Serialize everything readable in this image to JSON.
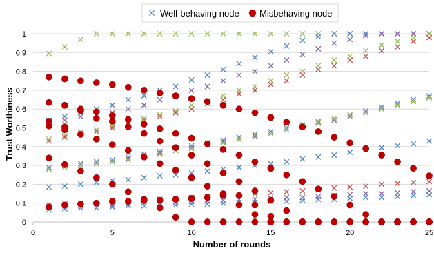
{
  "chart_data": {
    "type": "scatter",
    "xlabel": "Number of rounds",
    "ylabel": "Trust Worthiness",
    "xlim": [
      0,
      25
    ],
    "ylim": [
      0,
      1
    ],
    "x_ticks": [
      "0",
      "5",
      "10",
      "15",
      "20",
      "25"
    ],
    "y_ticks": [
      "0",
      "0,1",
      "0,2",
      "0,3",
      "0,4",
      "0,5",
      "0,6",
      "0,7",
      "0,8",
      "0,9",
      "1"
    ],
    "legend": {
      "position": "top",
      "entries": [
        {
          "label": "Well-behaving node",
          "marker": "x"
        },
        {
          "label": "Misbehaving node",
          "marker": "circle"
        }
      ]
    },
    "marker_colors": {
      "blue": "#4f81bd",
      "green": "#9bbb59",
      "purple": "#8064a2",
      "red": "#c0504d",
      "misbehaving": "#c00000"
    },
    "well_behaving": [
      {
        "color": "green",
        "x": [
          1,
          2,
          3,
          4,
          5,
          6,
          7,
          8,
          9,
          10,
          11,
          12,
          13,
          14,
          15,
          16,
          17,
          18,
          19,
          20,
          21,
          22,
          23,
          24,
          25
        ],
        "y": [
          0.895,
          0.93,
          0.97,
          1,
          1,
          1,
          1,
          1,
          1,
          1,
          1,
          1,
          1,
          1,
          1,
          1,
          1,
          1,
          1,
          1,
          1,
          1,
          1,
          1,
          1
        ]
      },
      {
        "color": "blue",
        "x": [
          1,
          2,
          3,
          4,
          5,
          6,
          7,
          8,
          9,
          10,
          11,
          12,
          13,
          14,
          15,
          16,
          17,
          18,
          19,
          20,
          21,
          22,
          23,
          24,
          25
        ],
        "y": [
          0.54,
          0.56,
          0.58,
          0.6,
          0.62,
          0.65,
          0.67,
          0.7,
          0.72,
          0.755,
          0.78,
          0.81,
          0.84,
          0.875,
          0.905,
          0.935,
          0.965,
          0.985,
          1,
          1,
          1,
          1,
          1,
          1,
          1
        ]
      },
      {
        "color": "purple",
        "x": [
          1,
          2,
          3,
          4,
          5,
          6,
          7,
          8,
          9,
          10,
          11,
          12,
          13,
          14,
          15,
          16,
          17,
          18,
          19,
          20,
          21,
          22,
          23,
          24,
          25
        ],
        "y": [
          0.52,
          0.54,
          0.56,
          0.57,
          0.58,
          0.6,
          0.62,
          0.65,
          0.67,
          0.7,
          0.72,
          0.75,
          0.78,
          0.8,
          0.83,
          0.86,
          0.89,
          0.92,
          0.95,
          0.97,
          0.99,
          1,
          1,
          1,
          1
        ]
      },
      {
        "color": "green",
        "x": [
          1,
          2,
          3,
          4,
          5,
          6,
          7,
          8,
          9,
          10,
          11,
          12,
          13,
          14,
          15,
          16,
          17,
          18,
          19,
          20,
          21,
          22,
          23,
          24,
          25
        ],
        "y": [
          0.44,
          0.46,
          0.48,
          0.49,
          0.51,
          0.53,
          0.55,
          0.57,
          0.59,
          0.62,
          0.64,
          0.67,
          0.7,
          0.72,
          0.75,
          0.78,
          0.8,
          0.83,
          0.86,
          0.88,
          0.91,
          0.94,
          0.96,
          0.98,
          1
        ]
      },
      {
        "color": "red",
        "x": [
          1,
          2,
          3,
          4,
          5,
          6,
          7,
          8,
          9,
          10,
          11,
          12,
          13,
          14,
          15,
          16,
          17,
          18,
          19,
          20,
          21,
          22,
          23,
          24,
          25
        ],
        "y": [
          0.43,
          0.45,
          0.47,
          0.48,
          0.5,
          0.52,
          0.54,
          0.56,
          0.58,
          0.6,
          0.63,
          0.65,
          0.68,
          0.7,
          0.73,
          0.75,
          0.78,
          0.81,
          0.83,
          0.86,
          0.88,
          0.91,
          0.93,
          0.96,
          0.98
        ]
      },
      {
        "color": "blue",
        "x": [
          1,
          2,
          3,
          4,
          5,
          6,
          7,
          8,
          9,
          10,
          11,
          12,
          13,
          14,
          15,
          16,
          17,
          18,
          19,
          20,
          21,
          22,
          23,
          24,
          25
        ],
        "y": [
          0.29,
          0.3,
          0.31,
          0.32,
          0.33,
          0.345,
          0.36,
          0.375,
          0.395,
          0.405,
          0.42,
          0.435,
          0.45,
          0.465,
          0.48,
          0.5,
          0.515,
          0.535,
          0.55,
          0.57,
          0.59,
          0.61,
          0.63,
          0.65,
          0.67
        ]
      },
      {
        "color": "purple",
        "x": [
          1,
          2,
          3,
          4,
          5,
          6,
          7,
          8,
          9,
          10,
          11,
          12,
          13,
          14,
          15,
          16,
          17,
          18,
          19,
          20,
          21,
          22,
          23,
          24,
          25
        ],
        "y": [
          0.28,
          0.29,
          0.3,
          0.31,
          0.32,
          0.335,
          0.35,
          0.365,
          0.38,
          0.395,
          0.41,
          0.425,
          0.44,
          0.455,
          0.47,
          0.49,
          0.51,
          0.525,
          0.54,
          0.56,
          0.58,
          0.6,
          0.62,
          0.64,
          0.66
        ]
      },
      {
        "color": "green",
        "x": [
          1,
          2,
          3,
          4,
          5,
          6,
          7,
          8,
          9,
          10,
          11,
          12,
          13,
          14,
          15,
          16,
          17,
          18,
          19,
          20,
          21,
          22,
          23,
          24,
          25
        ],
        "y": [
          0.28,
          0.29,
          0.3,
          0.31,
          0.32,
          0.33,
          0.35,
          0.36,
          0.38,
          0.39,
          0.41,
          0.42,
          0.44,
          0.46,
          0.47,
          0.49,
          0.51,
          0.53,
          0.55,
          0.57,
          0.58,
          0.6,
          0.62,
          0.64,
          0.66
        ]
      },
      {
        "color": "blue",
        "x": [
          1,
          2,
          3,
          4,
          5,
          6,
          7,
          8,
          9,
          10,
          11,
          12,
          13,
          14,
          15,
          16,
          17,
          18,
          19,
          20,
          21,
          22,
          23,
          24,
          25
        ],
        "y": [
          0.185,
          0.19,
          0.2,
          0.21,
          0.22,
          0.225,
          0.235,
          0.245,
          0.25,
          0.26,
          0.27,
          0.28,
          0.29,
          0.3,
          0.31,
          0.32,
          0.335,
          0.345,
          0.355,
          0.37,
          0.385,
          0.395,
          0.405,
          0.415,
          0.43
        ]
      },
      {
        "color": "red",
        "x": [
          1,
          2,
          3,
          4,
          5,
          6,
          7,
          8,
          9,
          10,
          11,
          12,
          13,
          14,
          15,
          16,
          17,
          18,
          19,
          20,
          21,
          22,
          23,
          24,
          25
        ],
        "y": [
          0.09,
          0.095,
          0.1,
          0.1,
          0.105,
          0.11,
          0.115,
          0.12,
          0.125,
          0.13,
          0.135,
          0.14,
          0.145,
          0.15,
          0.155,
          0.16,
          0.165,
          0.17,
          0.18,
          0.185,
          0.19,
          0.2,
          0.205,
          0.21,
          0.215
        ]
      },
      {
        "color": "purple",
        "x": [
          1,
          2,
          3,
          4,
          5,
          6,
          7,
          8,
          9,
          10,
          11,
          12,
          13,
          14,
          15,
          16,
          17,
          18,
          19,
          20,
          21,
          22,
          23,
          24,
          25
        ],
        "y": [
          0.08,
          0.085,
          0.085,
          0.09,
          0.09,
          0.095,
          0.1,
          0.1,
          0.105,
          0.11,
          0.11,
          0.115,
          0.12,
          0.12,
          0.125,
          0.13,
          0.13,
          0.135,
          0.14,
          0.145,
          0.15,
          0.15,
          0.155,
          0.16,
          0.165
        ]
      },
      {
        "color": "blue",
        "x": [
          1,
          2,
          3,
          4,
          5,
          6,
          7,
          8,
          9,
          10,
          11,
          12,
          13,
          14,
          15,
          16,
          17,
          18,
          19,
          20,
          21,
          22,
          23,
          24,
          25
        ],
        "y": [
          0.065,
          0.07,
          0.075,
          0.075,
          0.08,
          0.085,
          0.085,
          0.09,
          0.09,
          0.095,
          0.095,
          0.1,
          0.105,
          0.105,
          0.11,
          0.11,
          0.115,
          0.12,
          0.12,
          0.125,
          0.13,
          0.13,
          0.135,
          0.14,
          0.145
        ]
      }
    ],
    "misbehaving": [
      {
        "x": [
          1,
          2,
          3,
          4,
          5,
          6,
          7,
          8,
          9,
          10,
          11,
          12,
          13,
          14,
          15,
          16,
          17,
          18,
          19,
          20,
          21,
          22,
          23,
          24,
          25
        ],
        "y": [
          0.77,
          0.76,
          0.75,
          0.74,
          0.73,
          0.715,
          0.7,
          0.685,
          0.67,
          0.655,
          0.64,
          0.62,
          0.6,
          0.58,
          0.555,
          0.53,
          0.505,
          0.48,
          0.45,
          0.42,
          0.39,
          0.355,
          0.32,
          0.285,
          0.245
        ]
      },
      {
        "x": [
          1,
          2,
          3,
          4,
          5,
          6,
          7,
          8,
          9,
          10,
          11,
          12,
          13,
          14,
          15,
          16,
          17,
          18,
          19,
          20,
          21,
          22,
          23,
          24,
          25
        ],
        "y": [
          0.635,
          0.62,
          0.6,
          0.585,
          0.565,
          0.545,
          0.52,
          0.495,
          0.47,
          0.445,
          0.415,
          0.385,
          0.355,
          0.32,
          0.285,
          0.25,
          0.215,
          0.175,
          0.135,
          0.09,
          0.04,
          0,
          0,
          0,
          0
        ]
      },
      {
        "x": [
          1,
          2,
          3,
          4,
          5,
          6,
          7,
          8,
          9,
          10,
          11,
          12,
          13,
          14,
          15,
          16,
          17,
          18,
          19,
          20,
          21,
          22,
          23,
          24,
          25
        ],
        "y": [
          0.51,
          0.49,
          0.465,
          0.44,
          0.41,
          0.38,
          0.345,
          0.31,
          0.275,
          0.235,
          0.19,
          0.14,
          0.09,
          0.04,
          0,
          0,
          0,
          0,
          0,
          0,
          0,
          0,
          0,
          0,
          0
        ]
      },
      {
        "x": [
          1,
          2,
          3,
          4,
          5,
          6,
          7,
          8,
          9,
          10,
          11,
          12,
          13,
          14,
          15,
          16,
          17,
          18,
          19,
          20,
          21,
          22,
          23,
          24,
          25
        ],
        "y": [
          0.34,
          0.305,
          0.27,
          0.235,
          0.2,
          0.16,
          0.12,
          0.075,
          0.025,
          0,
          0,
          0,
          0,
          0,
          0,
          0,
          0,
          0,
          0,
          0,
          0,
          0,
          0,
          0,
          0
        ]
      },
      {
        "x": [
          1,
          2,
          3,
          4,
          5,
          6,
          7,
          8,
          9,
          10,
          11,
          12,
          13,
          14,
          15,
          16,
          17,
          18,
          19,
          20,
          21,
          22,
          23,
          24,
          25
        ],
        "y": [
          0.535,
          0.505,
          0.59,
          0.55,
          0.535,
          0.505,
          0.47,
          0.43,
          0.395,
          0.355,
          0.31,
          0.26,
          0.215,
          0.165,
          0.115,
          0.06,
          0,
          0,
          0,
          0,
          0,
          0,
          0,
          0,
          0
        ]
      },
      {
        "x": [
          1,
          2,
          3,
          4,
          5,
          6,
          7,
          8,
          9,
          10,
          11,
          12,
          13,
          14,
          15,
          16,
          17,
          18,
          19,
          20,
          21,
          22,
          23,
          24,
          25
        ],
        "y": [
          0.08,
          0.09,
          0.095,
          0.1,
          0.11,
          0.11,
          0.115,
          0.115,
          0.12,
          0.125,
          0.13,
          0.15,
          0.14,
          0.09,
          0.03,
          0,
          0,
          0,
          0,
          0,
          0,
          0,
          0,
          0,
          0
        ]
      }
    ]
  }
}
